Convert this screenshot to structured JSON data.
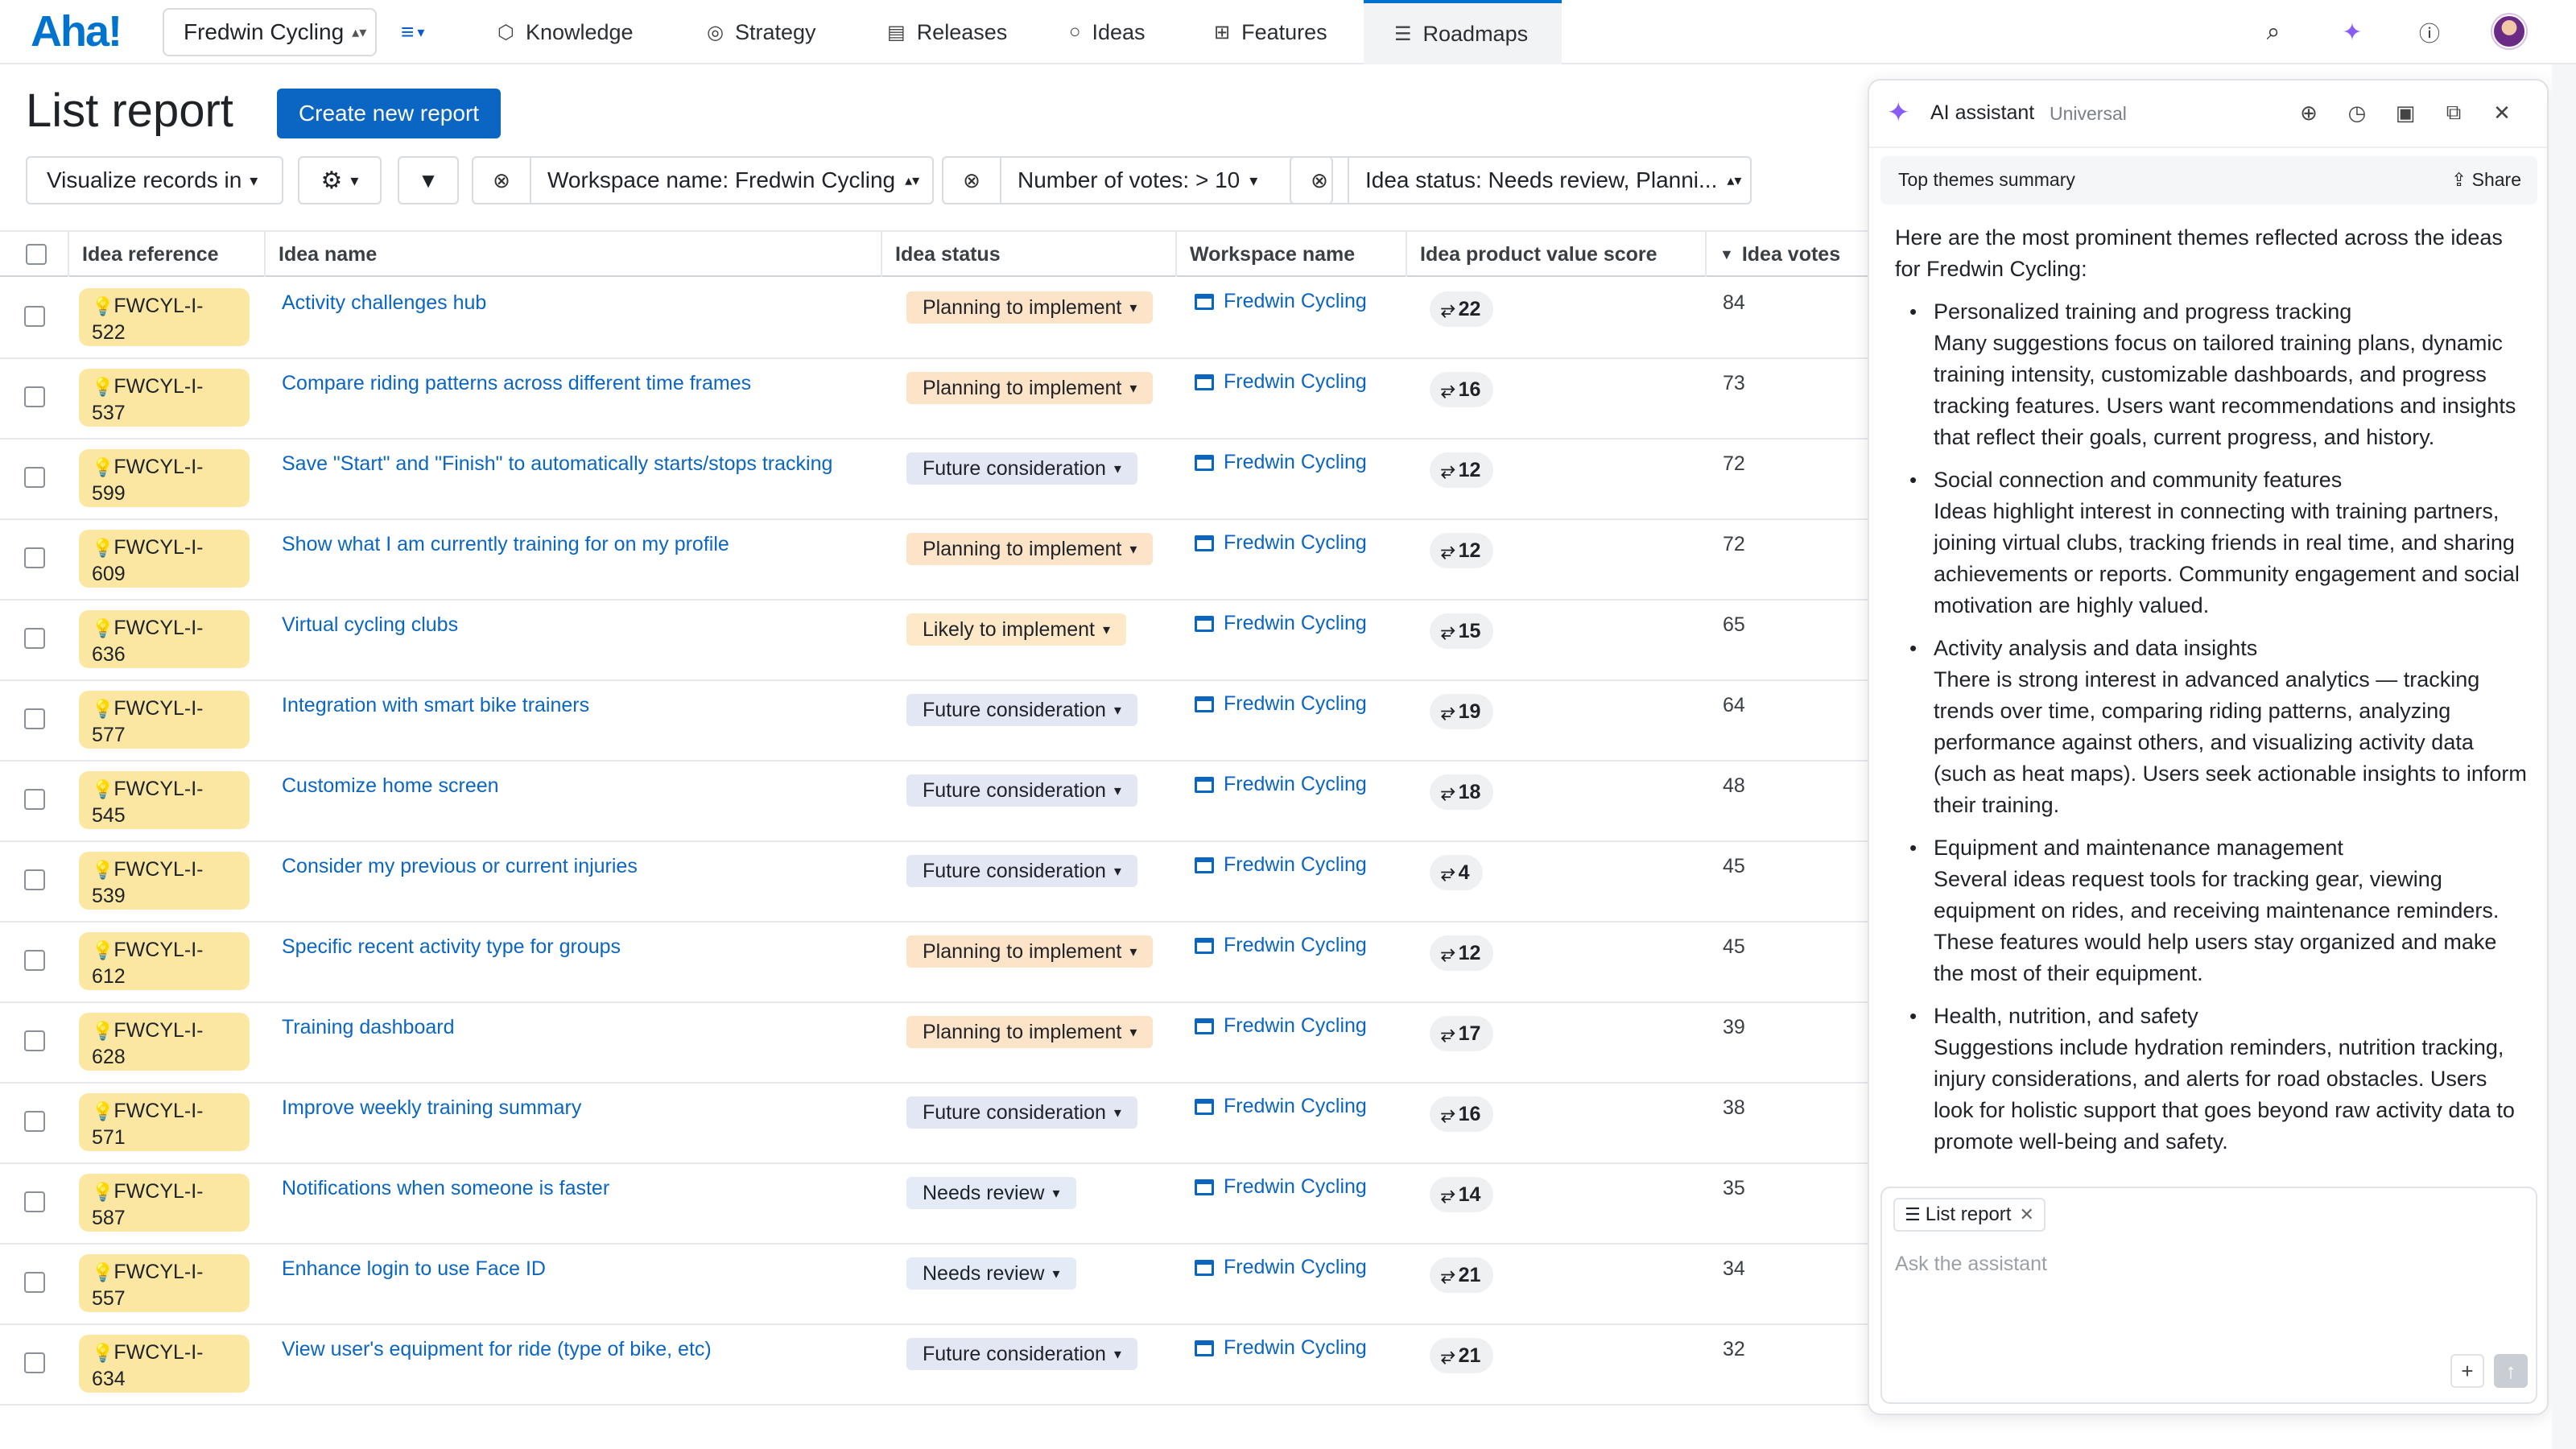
{
  "app": {
    "logo": "Aha!",
    "workspace": "Fredwin Cycling"
  },
  "nav": {
    "tabs": [
      {
        "label": "Knowledge",
        "icon": "cube-icon"
      },
      {
        "label": "Strategy",
        "icon": "target-icon"
      },
      {
        "label": "Releases",
        "icon": "calendar-icon"
      },
      {
        "label": "Ideas",
        "icon": "lightbulb-icon"
      },
      {
        "label": "Features",
        "icon": "grid-icon"
      },
      {
        "label": "Roadmaps",
        "icon": "roadmap-icon",
        "active": true
      }
    ]
  },
  "page": {
    "title": "List report",
    "create_button": "Create new report"
  },
  "filters": {
    "visualize": "Visualize records in",
    "workspace": "Workspace name: Fredwin Cycling",
    "votes": "Number of votes: > 10",
    "status": "Idea status: Needs review, Planni..."
  },
  "table": {
    "columns": [
      "Idea reference",
      "Idea name",
      "Idea status",
      "Workspace name",
      "Idea product value score",
      "Idea votes"
    ],
    "rows": [
      {
        "ref": "FWCYL-I-\n522",
        "ref1": "FWCYL-I-",
        "ref2": "522",
        "name": "Activity challenges hub",
        "status": "Planning to implement",
        "workspace": "Fredwin Cycling",
        "score": "22",
        "votes": "84"
      },
      {
        "ref1": "FWCYL-I-",
        "ref2": "537",
        "name": "Compare riding patterns across different time frames",
        "status": "Planning to implement",
        "workspace": "Fredwin Cycling",
        "score": "16",
        "votes": "73"
      },
      {
        "ref1": "FWCYL-I-",
        "ref2": "599",
        "name": "Save \"Start\" and \"Finish\" to automatically starts/stops tracking",
        "status": "Future consideration",
        "workspace": "Fredwin Cycling",
        "score": "12",
        "votes": "72"
      },
      {
        "ref1": "FWCYL-I-",
        "ref2": "609",
        "name": "Show what I am currently training for on my profile",
        "status": "Planning to implement",
        "workspace": "Fredwin Cycling",
        "score": "12",
        "votes": "72"
      },
      {
        "ref1": "FWCYL-I-",
        "ref2": "636",
        "name": "Virtual cycling clubs",
        "status": "Likely to implement",
        "workspace": "Fredwin Cycling",
        "score": "15",
        "votes": "65"
      },
      {
        "ref1": "FWCYL-I-",
        "ref2": "577",
        "name": "Integration with smart bike trainers",
        "status": "Future consideration",
        "workspace": "Fredwin Cycling",
        "score": "19",
        "votes": "64"
      },
      {
        "ref1": "FWCYL-I-",
        "ref2": "545",
        "name": "Customize home screen",
        "status": "Future consideration",
        "workspace": "Fredwin Cycling",
        "score": "18",
        "votes": "48"
      },
      {
        "ref1": "FWCYL-I-",
        "ref2": "539",
        "name": "Consider my previous or current injuries",
        "status": "Future consideration",
        "workspace": "Fredwin Cycling",
        "score": "4",
        "votes": "45"
      },
      {
        "ref1": "FWCYL-I-",
        "ref2": "612",
        "name": "Specific recent activity type for groups",
        "status": "Planning to implement",
        "workspace": "Fredwin Cycling",
        "score": "12",
        "votes": "45"
      },
      {
        "ref1": "FWCYL-I-",
        "ref2": "628",
        "name": "Training dashboard",
        "status": "Planning to implement",
        "workspace": "Fredwin Cycling",
        "score": "17",
        "votes": "39"
      },
      {
        "ref1": "FWCYL-I-",
        "ref2": "571",
        "name": "Improve weekly training summary",
        "status": "Future consideration",
        "workspace": "Fredwin Cycling",
        "score": "16",
        "votes": "38"
      },
      {
        "ref1": "FWCYL-I-",
        "ref2": "587",
        "name": "Notifications when someone is faster",
        "status": "Needs review",
        "workspace": "Fredwin Cycling",
        "score": "14",
        "votes": "35"
      },
      {
        "ref1": "FWCYL-I-",
        "ref2": "557",
        "name": "Enhance login to use Face ID",
        "status": "Needs review",
        "workspace": "Fredwin Cycling",
        "score": "21",
        "votes": "34"
      },
      {
        "ref1": "FWCYL-I-",
        "ref2": "634",
        "name": "View user's equipment for ride (type of bike, etc)",
        "status": "Future consideration",
        "workspace": "Fredwin Cycling",
        "score": "21",
        "votes": "32"
      }
    ]
  },
  "status_colors": {
    "Planning to implement": "#fde3c8",
    "Future consideration": "#e3e6f3",
    "Likely to implement": "#fde9c8",
    "Needs review": "#e3ecf6"
  },
  "assistant": {
    "title": "AI assistant",
    "subtitle": "Universal",
    "thread_title": "Top themes summary",
    "share": "Share",
    "intro": "Here are the most prominent themes reflected across the ideas for Fredwin Cycling:",
    "themes": [
      {
        "heading": "Personalized training and progress tracking",
        "body": "Many suggestions focus on tailored training plans, dynamic training intensity, customizable dashboards, and progress tracking features. Users want recommendations and insights that reflect their goals, current progress, and history."
      },
      {
        "heading": "Social connection and community features",
        "body": "Ideas highlight interest in connecting with training partners, joining virtual clubs, tracking friends in real time, and sharing achievements or reports. Community engagement and social motivation are highly valued."
      },
      {
        "heading": "Activity analysis and data insights",
        "body": "There is strong interest in advanced analytics — tracking trends over time, comparing riding patterns, analyzing performance against others, and visualizing activity data (such as heat maps). Users seek actionable insights to inform their training."
      },
      {
        "heading": "Equipment and maintenance management",
        "body": "Several ideas request tools for tracking gear, viewing equipment on rides, and receiving maintenance reminders. These features would help users stay organized and make the most of their equipment."
      },
      {
        "heading": "Health, nutrition, and safety",
        "body": "Suggestions include hydration reminders, nutrition tracking, injury considerations, and alerts for road obstacles. Users look for holistic support that goes beyond raw activity data to promote well-being and safety."
      }
    ],
    "context_chip": "List report",
    "input_placeholder": "Ask the assistant"
  }
}
